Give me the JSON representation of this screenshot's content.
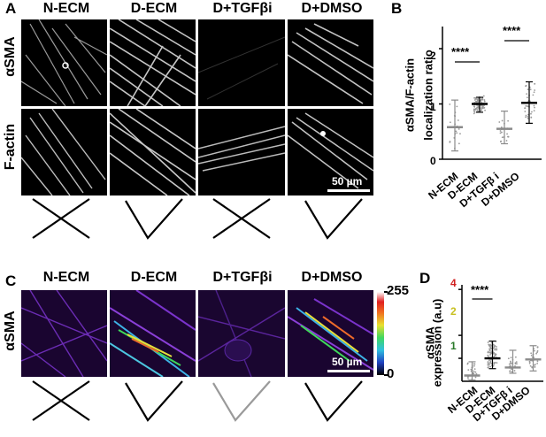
{
  "panels": {
    "A": {
      "label": "A",
      "columns": [
        "N-ECM",
        "D-ECM",
        "D+TGFβi",
        "D+DMSO"
      ],
      "rows": [
        "αSMA",
        "F-actin"
      ],
      "scale_bar": "50 µm",
      "marks": [
        "cross",
        "check",
        "cross",
        "check"
      ]
    },
    "B": {
      "label": "B",
      "ylabel_line1": "αSMA/F-actin",
      "ylabel_line2": "localization ratio",
      "yticks": [
        "0",
        "1",
        "2"
      ],
      "significance": [
        "****",
        "****"
      ]
    },
    "C": {
      "label": "C",
      "columns": [
        "N-ECM",
        "D-ECM",
        "D+TGFβi",
        "D+DMSO"
      ],
      "row": "αSMA",
      "scale_bar": "50 µm",
      "colorbar_max": "255",
      "colorbar_min": "0",
      "marks": [
        "cross",
        "check",
        "check-gray",
        "check"
      ]
    },
    "D": {
      "label": "D",
      "ylabel_line1": "αSMA",
      "ylabel_line2": "expression (a.u)",
      "yticks": [
        "1",
        "2",
        "4"
      ],
      "significance": [
        "****"
      ]
    }
  },
  "chart_data": [
    {
      "type": "scatter",
      "panel": "B",
      "categories": [
        "N-ECM",
        "D-ECM",
        "D+TGFβ i",
        "D+DMSO"
      ],
      "ylabel": "αSMA/F-actin localization ratio",
      "ylim": [
        0,
        2.4
      ],
      "mean": [
        0.58,
        1.0,
        0.55,
        1.02
      ],
      "sd_low": [
        0.15,
        0.85,
        0.28,
        0.65
      ],
      "sd_high": [
        1.07,
        1.12,
        0.87,
        1.4
      ],
      "comparisons": [
        [
          "N-ECM",
          "D-ECM",
          "****"
        ],
        [
          "D+TGFβ i",
          "D+DMSO",
          "****"
        ]
      ]
    },
    {
      "type": "scatter",
      "panel": "D",
      "categories": [
        "N-ECM",
        "D-ECM",
        "D+TGFβ i",
        "D+DMSO"
      ],
      "ylabel": "αSMA expression (a.u)",
      "ylim": [
        0,
        4.2
      ],
      "mean": [
        0.25,
        1.0,
        0.6,
        0.95
      ],
      "sd_low": [
        0.05,
        0.55,
        0.35,
        0.45
      ],
      "sd_high": [
        0.85,
        1.75,
        1.35,
        1.55
      ],
      "comparisons": [
        [
          "N-ECM",
          "D-ECM",
          "****"
        ]
      ]
    }
  ],
  "colors": {
    "micro_bg": "#000000",
    "fiber_gray": "#d9d9d9",
    "check_gray": "#9a9a9a"
  }
}
